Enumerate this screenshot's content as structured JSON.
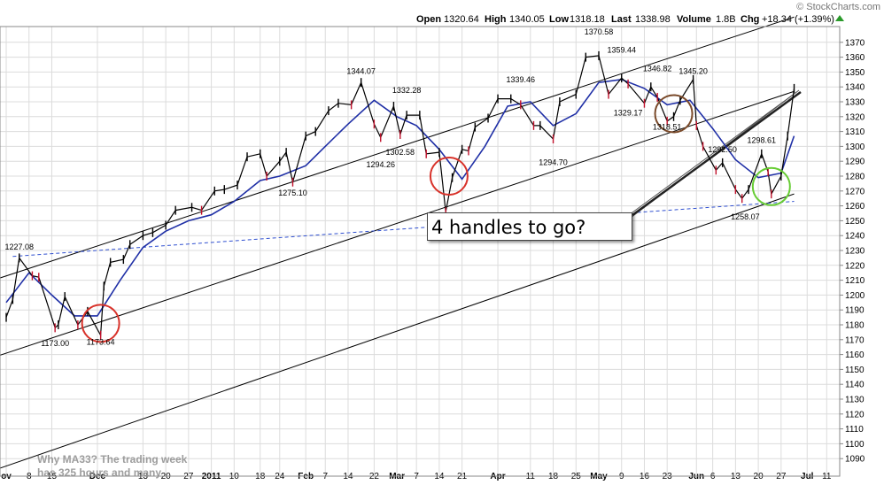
{
  "header": {
    "brand": "© StockCharts.com",
    "open_label": "Open",
    "open": "1320.64",
    "high_label": "High",
    "high": "1340.05",
    "low_label": "Low",
    "low": "1318.18",
    "last_label": "Last",
    "last": "1338.98",
    "volume_label": "Volume",
    "volume": "1.8B",
    "chg_label": "Chg",
    "chg": "+18.34 (+1.39%)"
  },
  "callout_text": "4 handles to go?",
  "watermark": {
    "line1": "Why MA33? The trading week",
    "line2": "has 325 hours and many"
  },
  "colors": {
    "price": "#000000",
    "ma": "#1f2fa6",
    "support": "#3050d0",
    "circle_red": "#d8322a",
    "circle_brown": "#7a4a2a",
    "circle_green": "#66cc33"
  },
  "chart_data": {
    "type": "line",
    "title": "",
    "xlabel": "",
    "ylabel": "",
    "ylim": [
      1081,
      1381
    ],
    "y_ticks": [
      1090,
      1100,
      1110,
      1120,
      1130,
      1140,
      1150,
      1160,
      1170,
      1180,
      1190,
      1200,
      1210,
      1220,
      1230,
      1240,
      1250,
      1260,
      1270,
      1280,
      1290,
      1300,
      1310,
      1320,
      1330,
      1340,
      1350,
      1360,
      1370
    ],
    "x_ticks": [
      "ov",
      "8",
      "15",
      "Dec",
      "13",
      "20",
      "27",
      "2011",
      "10",
      "18",
      "24",
      "Feb",
      "7",
      "14",
      "22",
      "Mar",
      "7",
      "14",
      "21",
      "Apr",
      "11",
      "18",
      "25",
      "May",
      "9",
      "16",
      "23",
      "Jun",
      "6",
      "13",
      "20",
      "27",
      "Jul",
      "11"
    ],
    "x_tick_dates": [
      "2010-11-01",
      "2010-11-08",
      "2010-11-15",
      "2010-11-29",
      "2010-12-13",
      "2010-12-20",
      "2010-12-27",
      "2011-01-03",
      "2011-01-10",
      "2011-01-18",
      "2011-01-24",
      "2011-02-01",
      "2011-02-07",
      "2011-02-14",
      "2011-02-22",
      "2011-03-01",
      "2011-03-07",
      "2011-03-14",
      "2011-03-21",
      "2011-04-01",
      "2011-04-11",
      "2011-04-18",
      "2011-04-25",
      "2011-05-02",
      "2011-05-09",
      "2011-05-16",
      "2011-05-23",
      "2011-06-01",
      "2011-06-06",
      "2011-06-13",
      "2011-06-20",
      "2011-06-27",
      "2011-07-05",
      "2011-07-11"
    ],
    "series": [
      {
        "kind": "price",
        "points": [
          [
            "2010-11-01",
            1185
          ],
          [
            "2010-11-03",
            1197
          ],
          [
            "2010-11-05",
            1225
          ],
          [
            "2010-11-09",
            1213
          ],
          [
            "2010-11-11",
            1212
          ],
          [
            "2010-11-16",
            1178
          ],
          [
            "2010-11-17",
            1180
          ],
          [
            "2010-11-19",
            1199
          ],
          [
            "2010-11-23",
            1180
          ],
          [
            "2010-11-26",
            1189
          ],
          [
            "2010-11-30",
            1173
          ],
          [
            "2010-12-01",
            1206
          ],
          [
            "2010-12-03",
            1222
          ],
          [
            "2010-12-07",
            1224
          ],
          [
            "2010-12-09",
            1234
          ],
          [
            "2010-12-13",
            1240
          ],
          [
            "2010-12-16",
            1242
          ],
          [
            "2010-12-20",
            1247
          ],
          [
            "2010-12-23",
            1257
          ],
          [
            "2010-12-28",
            1259
          ],
          [
            "2010-12-31",
            1257
          ],
          [
            "2011-01-04",
            1270
          ],
          [
            "2011-01-07",
            1271
          ],
          [
            "2011-01-11",
            1274
          ],
          [
            "2011-01-14",
            1293
          ],
          [
            "2011-01-18",
            1295
          ],
          [
            "2011-01-20",
            1280
          ],
          [
            "2011-01-24",
            1290
          ],
          [
            "2011-01-26",
            1296
          ],
          [
            "2011-01-28",
            1276
          ],
          [
            "2011-02-01",
            1307
          ],
          [
            "2011-02-04",
            1310
          ],
          [
            "2011-02-08",
            1324
          ],
          [
            "2011-02-11",
            1329
          ],
          [
            "2011-02-15",
            1328
          ],
          [
            "2011-02-18",
            1343
          ],
          [
            "2011-02-22",
            1315
          ],
          [
            "2011-02-24",
            1306
          ],
          [
            "2011-02-28",
            1327
          ],
          [
            "2011-03-02",
            1308
          ],
          [
            "2011-03-04",
            1321
          ],
          [
            "2011-03-08",
            1321
          ],
          [
            "2011-03-10",
            1295
          ],
          [
            "2011-03-14",
            1296
          ],
          [
            "2011-03-16",
            1256
          ],
          [
            "2011-03-18",
            1279
          ],
          [
            "2011-03-21",
            1298
          ],
          [
            "2011-03-23",
            1297
          ],
          [
            "2011-03-25",
            1313
          ],
          [
            "2011-03-29",
            1319
          ],
          [
            "2011-04-01",
            1332
          ],
          [
            "2011-04-05",
            1332
          ],
          [
            "2011-04-08",
            1328
          ],
          [
            "2011-04-12",
            1314
          ],
          [
            "2011-04-14",
            1314
          ],
          [
            "2011-04-18",
            1305
          ],
          [
            "2011-04-20",
            1330
          ],
          [
            "2011-04-25",
            1335
          ],
          [
            "2011-04-28",
            1360
          ],
          [
            "2011-05-02",
            1361
          ],
          [
            "2011-05-05",
            1335
          ],
          [
            "2011-05-09",
            1346
          ],
          [
            "2011-05-11",
            1342
          ],
          [
            "2011-05-16",
            1329
          ],
          [
            "2011-05-18",
            1340
          ],
          [
            "2011-05-20",
            1333
          ],
          [
            "2011-05-23",
            1317
          ],
          [
            "2011-05-25",
            1320
          ],
          [
            "2011-05-27",
            1331
          ],
          [
            "2011-05-31",
            1345
          ],
          [
            "2011-06-01",
            1314
          ],
          [
            "2011-06-03",
            1300
          ],
          [
            "2011-06-07",
            1284
          ],
          [
            "2011-06-09",
            1289
          ],
          [
            "2011-06-13",
            1271
          ],
          [
            "2011-06-15",
            1265
          ],
          [
            "2011-06-17",
            1271
          ],
          [
            "2011-06-21",
            1295
          ],
          [
            "2011-06-23",
            1283
          ],
          [
            "2011-06-24",
            1268
          ],
          [
            "2011-06-27",
            1280
          ],
          [
            "2011-06-29",
            1307
          ],
          [
            "2011-07-01",
            1339
          ]
        ]
      },
      {
        "name": "MA33",
        "kind": "ma",
        "points": [
          [
            "2010-11-01",
            1195
          ],
          [
            "2010-11-08",
            1215
          ],
          [
            "2010-11-15",
            1200
          ],
          [
            "2010-11-22",
            1186
          ],
          [
            "2010-11-29",
            1186
          ],
          [
            "2010-12-06",
            1210
          ],
          [
            "2010-12-13",
            1232
          ],
          [
            "2010-12-20",
            1243
          ],
          [
            "2010-12-27",
            1250
          ],
          [
            "2011-01-03",
            1254
          ],
          [
            "2011-01-10",
            1263
          ],
          [
            "2011-01-18",
            1277
          ],
          [
            "2011-01-24",
            1280
          ],
          [
            "2011-02-01",
            1287
          ],
          [
            "2011-02-07",
            1300
          ],
          [
            "2011-02-14",
            1315
          ],
          [
            "2011-02-22",
            1331
          ],
          [
            "2011-03-01",
            1320
          ],
          [
            "2011-03-07",
            1314
          ],
          [
            "2011-03-14",
            1298
          ],
          [
            "2011-03-21",
            1278
          ],
          [
            "2011-03-28",
            1300
          ],
          [
            "2011-04-04",
            1327
          ],
          [
            "2011-04-11",
            1330
          ],
          [
            "2011-04-18",
            1314
          ],
          [
            "2011-04-25",
            1322
          ],
          [
            "2011-05-02",
            1343
          ],
          [
            "2011-05-09",
            1345
          ],
          [
            "2011-05-16",
            1339
          ],
          [
            "2011-05-23",
            1328
          ],
          [
            "2011-05-30",
            1331
          ],
          [
            "2011-06-06",
            1312
          ],
          [
            "2011-06-13",
            1291
          ],
          [
            "2011-06-20",
            1279
          ],
          [
            "2011-06-27",
            1282
          ],
          [
            "2011-07-01",
            1307
          ]
        ]
      }
    ],
    "annotations": [
      {
        "date": "2010-11-05",
        "value": 1227.08,
        "text": "1227.08"
      },
      {
        "date": "2010-11-16",
        "value": 1173.0,
        "text": "1173.00"
      },
      {
        "date": "2010-11-30",
        "value": 1173.64,
        "text": "1173.64"
      },
      {
        "date": "2011-01-28",
        "value": 1275.1,
        "text": "1275.10"
      },
      {
        "date": "2011-02-18",
        "value": 1344.07,
        "text": "1344.07"
      },
      {
        "date": "2011-02-24",
        "value": 1294.26,
        "text": "1294.26"
      },
      {
        "date": "2011-03-02",
        "value": 1302.58,
        "text": "1302.58"
      },
      {
        "date": "2011-03-04",
        "value": 1332.28,
        "text": "1332.28"
      },
      {
        "date": "2011-04-08",
        "value": 1339.46,
        "text": "1339.46"
      },
      {
        "date": "2011-04-18",
        "value": 1294.7,
        "text": "1294.70"
      },
      {
        "date": "2011-05-02",
        "value": 1370.58,
        "text": "1370.58"
      },
      {
        "date": "2011-05-09",
        "value": 1359.44,
        "text": "1359.44"
      },
      {
        "date": "2011-05-11",
        "value": 1329.17,
        "text": "1329.17"
      },
      {
        "date": "2011-05-20",
        "value": 1346.82,
        "text": "1346.82"
      },
      {
        "date": "2011-05-23",
        "value": 1318.51,
        "text": "1318.51"
      },
      {
        "date": "2011-05-31",
        "value": 1345.2,
        "text": "1345.20"
      },
      {
        "date": "2011-06-09",
        "value": 1292.5,
        "text": "1292.50"
      },
      {
        "date": "2011-06-16",
        "value": 1258.07,
        "text": "1258.07"
      },
      {
        "date": "2011-06-21",
        "value": 1298.61,
        "text": "1298.61"
      }
    ],
    "trendlines": [
      {
        "style": "solid",
        "from": [
          "2010-10-28",
          1082
        ],
        "to": [
          "2011-07-01",
          1268
        ]
      },
      {
        "style": "solid",
        "from": [
          "2010-10-28",
          1158
        ],
        "to": [
          "2011-07-01",
          1337
        ]
      },
      {
        "style": "solid",
        "from": [
          "2010-10-28",
          1210
        ],
        "to": [
          "2011-07-01",
          1387
        ]
      },
      {
        "style": "dashed",
        "from": [
          "2010-11-03",
          1226
        ],
        "to": [
          "2011-07-01",
          1263
        ]
      }
    ],
    "circles": [
      {
        "date": "2010-11-30",
        "value": 1181,
        "color": "red"
      },
      {
        "date": "2011-03-17",
        "value": 1280,
        "color": "red"
      },
      {
        "date": "2011-05-25",
        "value": 1322,
        "color": "brown"
      },
      {
        "date": "2011-06-24",
        "value": 1273,
        "color": "green"
      }
    ]
  }
}
